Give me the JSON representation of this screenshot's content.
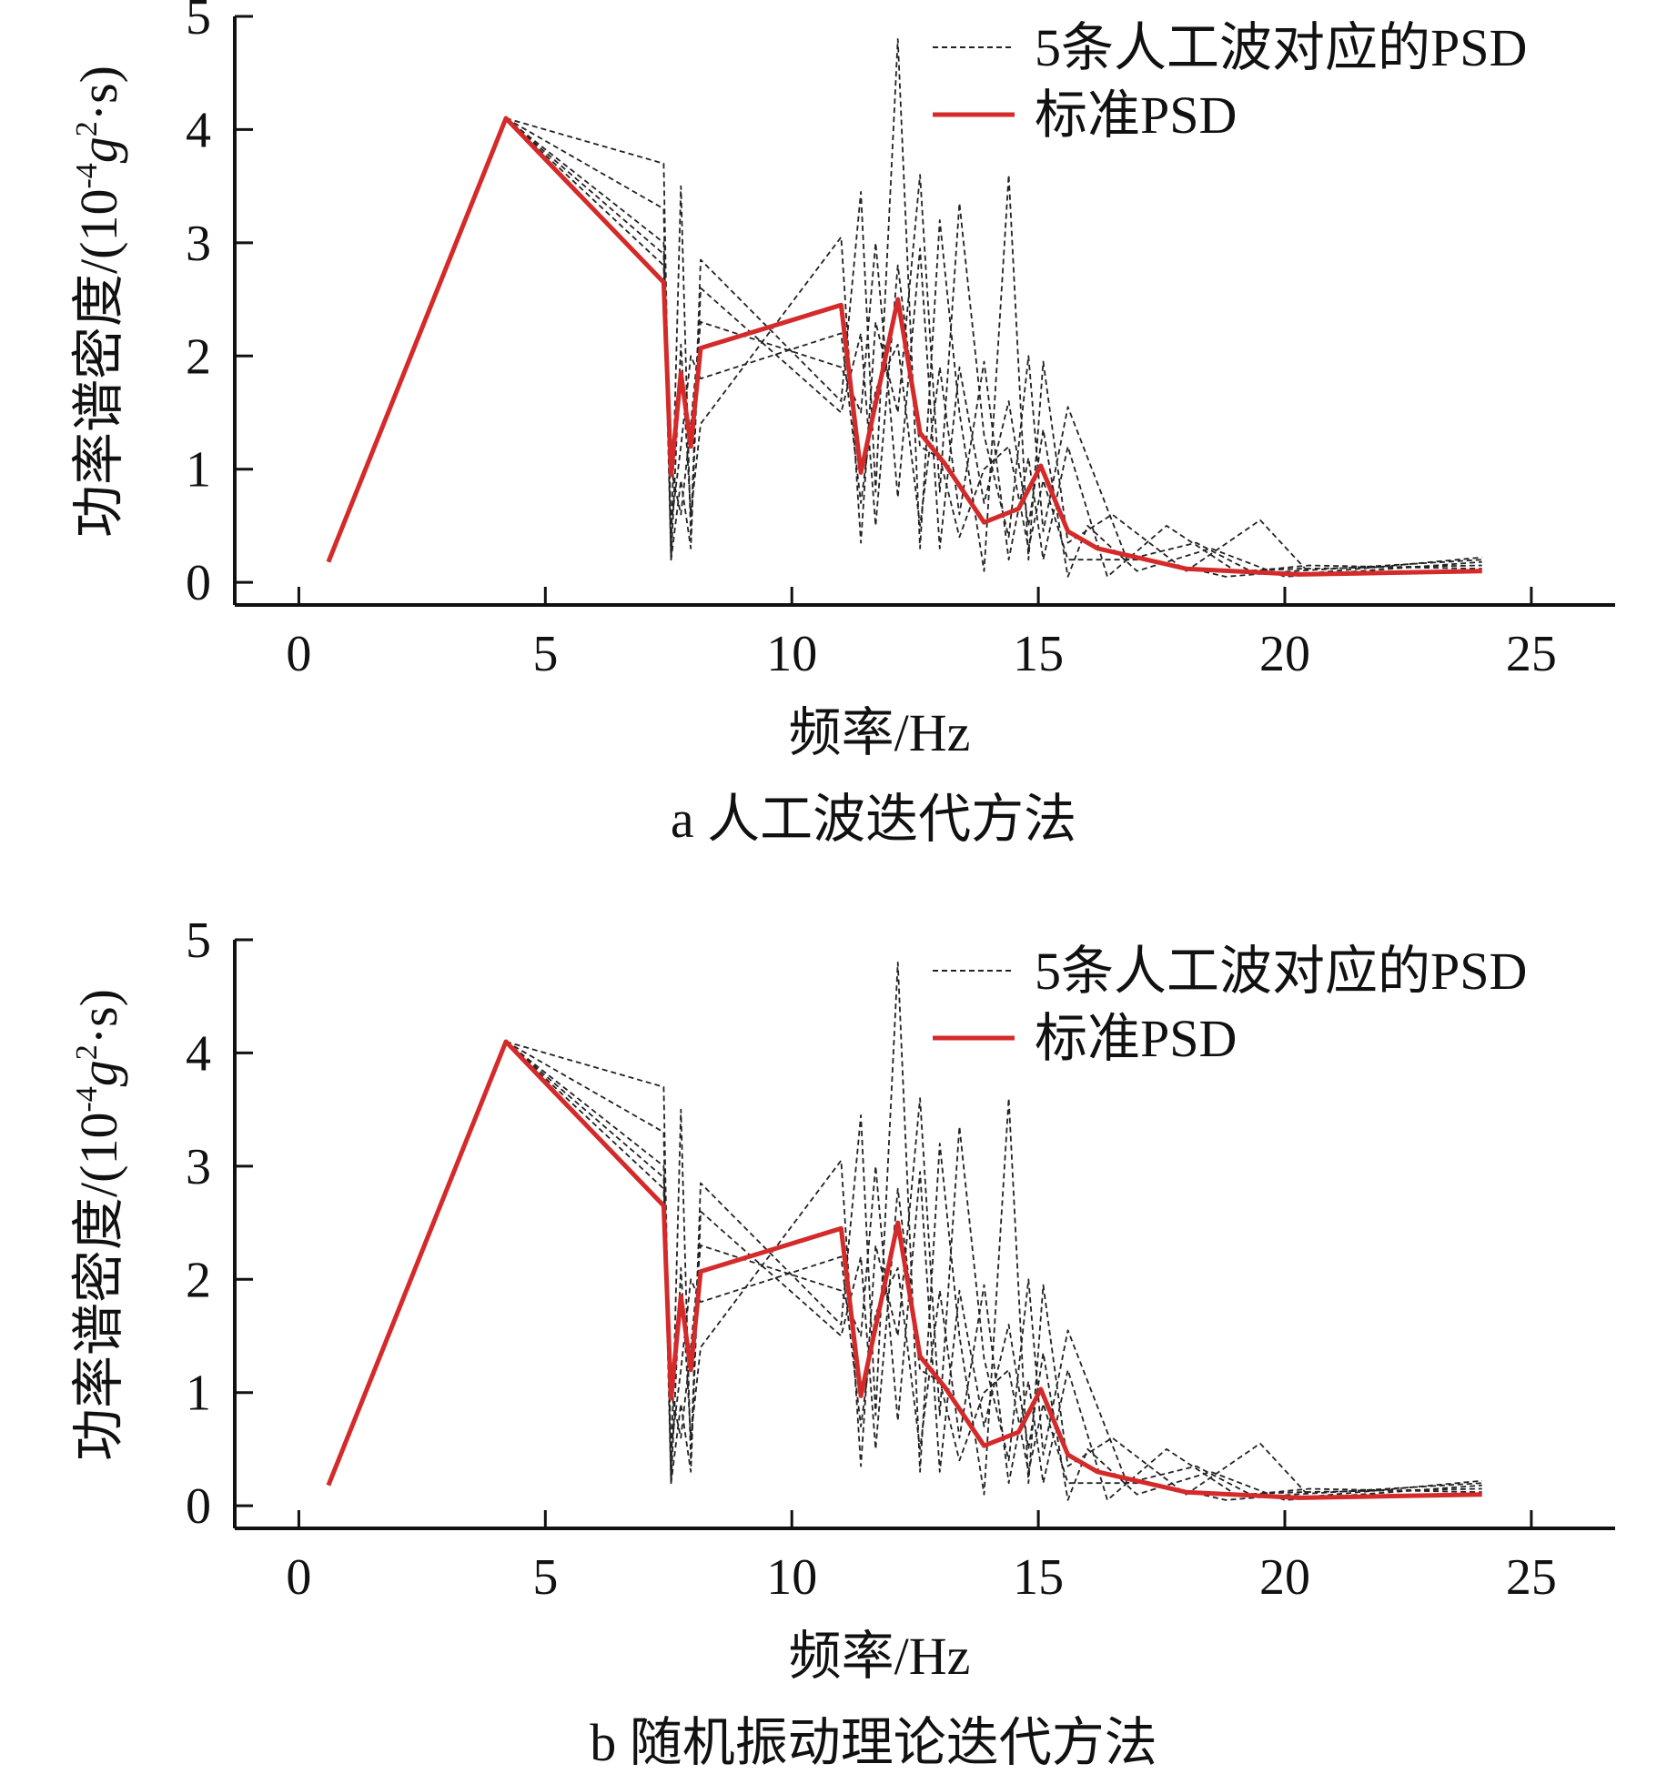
{
  "chart_data": [
    {
      "type": "line",
      "caption": "a 人工波迭代方法",
      "xlabel": "频率/Hz",
      "ylabel_main": "功率谱密度/(10",
      "ylabel_sup1": "-4",
      "ylabel_g": "g",
      "ylabel_sup2": "2",
      "ylabel_end": "·s)",
      "xlim": [
        -1.3,
        26.7
      ],
      "ylim": [
        -0.2,
        5
      ],
      "xticks": [
        "0",
        "5",
        "10",
        "15",
        "20",
        "25"
      ],
      "yticks": [
        "0",
        "1",
        "2",
        "3",
        "4",
        "5"
      ],
      "legend": {
        "position": "top-right",
        "entries": [
          "5条人工波对应的PSD",
          "标准PSD"
        ]
      },
      "series": [
        {
          "name": "标准PSD",
          "style": "solid",
          "color": "#d42a2a",
          "x": [
            0.6,
            4.2,
            7.4,
            7.55,
            7.75,
            7.95,
            8.15,
            11.0,
            11.4,
            12.15,
            12.6,
            13.1,
            13.9,
            14.6,
            15.05,
            15.6,
            16.2,
            18.0,
            20.3,
            21.5,
            24.0
          ],
          "y": [
            0.18,
            4.1,
            2.65,
            0.95,
            1.85,
            1.2,
            2.07,
            2.45,
            0.97,
            2.5,
            1.32,
            1.05,
            0.53,
            0.65,
            1.03,
            0.45,
            0.3,
            0.12,
            0.07,
            0.08,
            0.1
          ]
        },
        {
          "name": "",
          "style": "dashed",
          "color": "#222222",
          "x": [
            4.2,
            7.4,
            7.55,
            7.75,
            7.95,
            8.15,
            11.0,
            11.4,
            11.7,
            12.15,
            12.6,
            13.0,
            13.4,
            13.9,
            14.4,
            14.8,
            15.1,
            15.6,
            16.5,
            18.0,
            19.5,
            20.5,
            24.0
          ],
          "y": [
            4.1,
            3.7,
            0.3,
            3.5,
            0.4,
            2.85,
            1.6,
            3.45,
            0.8,
            4.8,
            0.3,
            3.2,
            1.5,
            0.1,
            3.6,
            0.2,
            1.95,
            0.35,
            0.6,
            0.1,
            0.55,
            0.08,
            0.22
          ]
        },
        {
          "name": "",
          "style": "dashed",
          "color": "#222222",
          "x": [
            4.2,
            7.4,
            7.55,
            7.75,
            7.95,
            8.15,
            11.0,
            11.4,
            11.7,
            12.15,
            12.6,
            13.0,
            13.4,
            13.9,
            14.4,
            14.8,
            15.1,
            15.6,
            16.8,
            18.2,
            19.3,
            20.5,
            24.0
          ],
          "y": [
            4.1,
            3.3,
            0.2,
            2.1,
            0.6,
            1.4,
            3.05,
            0.35,
            2.3,
            1.5,
            3.6,
            0.8,
            3.35,
            1.3,
            0.4,
            2.0,
            0.45,
            1.55,
            0.2,
            0.35,
            0.1,
            0.15,
            0.12
          ]
        },
        {
          "name": "",
          "style": "dashed",
          "color": "#222222",
          "x": [
            4.2,
            7.4,
            7.55,
            7.75,
            7.95,
            8.15,
            11.0,
            11.4,
            11.7,
            12.15,
            12.6,
            13.0,
            13.4,
            13.9,
            14.4,
            14.8,
            15.1,
            15.6,
            16.0,
            17.0,
            18.5,
            20.0,
            24.0
          ],
          "y": [
            4.1,
            3.0,
            1.0,
            0.6,
            1.4,
            2.3,
            1.9,
            1.5,
            3.0,
            0.75,
            2.95,
            0.3,
            1.9,
            0.7,
            1.6,
            0.5,
            1.35,
            0.05,
            0.5,
            0.1,
            0.3,
            0.05,
            0.18
          ]
        },
        {
          "name": "",
          "style": "dashed",
          "color": "#222222",
          "x": [
            4.2,
            7.4,
            7.55,
            7.75,
            7.95,
            8.15,
            11.0,
            11.4,
            11.7,
            12.15,
            12.6,
            13.0,
            13.4,
            13.9,
            14.4,
            14.8,
            15.1,
            15.6,
            16.4,
            17.6,
            19.0,
            20.3,
            24.0
          ],
          "y": [
            4.1,
            2.9,
            0.5,
            1.2,
            2.0,
            1.8,
            2.2,
            0.7,
            1.7,
            2.1,
            0.5,
            1.9,
            0.6,
            1.95,
            0.2,
            1.1,
            0.2,
            1.2,
            0.05,
            0.5,
            0.1,
            0.12,
            0.15
          ]
        },
        {
          "name": "",
          "style": "dashed",
          "color": "#222222",
          "x": [
            4.2,
            7.4,
            7.55,
            7.75,
            7.95,
            8.15,
            11.0,
            11.4,
            11.7,
            12.15,
            12.6,
            13.0,
            13.4,
            13.9,
            14.4,
            14.8,
            15.1,
            15.6,
            16.2,
            17.3,
            18.8,
            20.2,
            24.0
          ],
          "y": [
            4.1,
            2.8,
            0.2,
            0.9,
            0.3,
            2.6,
            1.5,
            2.2,
            0.5,
            2.8,
            1.2,
            1.1,
            0.4,
            1.0,
            1.2,
            0.3,
            0.9,
            0.2,
            0.2,
            0.2,
            0.05,
            0.1,
            0.2
          ]
        }
      ]
    },
    {
      "type": "line",
      "caption": "b 随机振动理论迭代方法",
      "xlabel": "频率/Hz",
      "ylabel_main": "功率谱密度/(10",
      "ylabel_sup1": "-4",
      "ylabel_g": "g",
      "ylabel_sup2": "2",
      "ylabel_end": "·s)",
      "xlim": [
        -1.3,
        26.7
      ],
      "ylim": [
        -0.2,
        5
      ],
      "xticks": [
        "0",
        "5",
        "10",
        "15",
        "20",
        "25"
      ],
      "yticks": [
        "0",
        "1",
        "2",
        "3",
        "4",
        "5"
      ],
      "legend": {
        "position": "top-right",
        "entries": [
          "5条人工波对应的PSD",
          "标准PSD"
        ]
      },
      "series": [
        {
          "name": "标准PSD",
          "style": "solid",
          "color": "#d42a2a",
          "x": [
            0.6,
            4.2,
            7.4,
            7.55,
            7.75,
            7.95,
            8.15,
            11.0,
            11.4,
            12.15,
            12.6,
            13.1,
            13.9,
            14.6,
            15.05,
            15.6,
            16.2,
            18.0,
            20.3,
            21.5,
            24.0
          ],
          "y": [
            0.18,
            4.1,
            2.65,
            0.95,
            1.85,
            1.2,
            2.07,
            2.45,
            0.97,
            2.5,
            1.32,
            1.05,
            0.53,
            0.65,
            1.03,
            0.45,
            0.3,
            0.12,
            0.07,
            0.08,
            0.1
          ]
        },
        {
          "name": "",
          "style": "dashed",
          "color": "#222222",
          "x": [
            4.2,
            7.4,
            7.55,
            7.75,
            7.95,
            8.15,
            11.0,
            11.4,
            11.7,
            12.15,
            12.6,
            13.0,
            13.4,
            13.9,
            14.4,
            14.8,
            15.1,
            15.6,
            16.5,
            18.0,
            19.5,
            20.5,
            24.0
          ],
          "y": [
            4.1,
            3.7,
            0.3,
            3.5,
            0.4,
            2.85,
            1.6,
            3.45,
            0.8,
            4.8,
            0.3,
            3.2,
            1.5,
            0.1,
            3.6,
            0.2,
            1.95,
            0.35,
            0.6,
            0.1,
            0.55,
            0.08,
            0.22
          ]
        },
        {
          "name": "",
          "style": "dashed",
          "color": "#222222",
          "x": [
            4.2,
            7.4,
            7.55,
            7.75,
            7.95,
            8.15,
            11.0,
            11.4,
            11.7,
            12.15,
            12.6,
            13.0,
            13.4,
            13.9,
            14.4,
            14.8,
            15.1,
            15.6,
            16.8,
            18.2,
            19.3,
            20.5,
            24.0
          ],
          "y": [
            4.1,
            3.3,
            0.2,
            2.1,
            0.6,
            1.4,
            3.05,
            0.35,
            2.3,
            1.5,
            3.6,
            0.8,
            3.35,
            1.3,
            0.4,
            2.0,
            0.45,
            1.55,
            0.2,
            0.35,
            0.1,
            0.15,
            0.12
          ]
        },
        {
          "name": "",
          "style": "dashed",
          "color": "#222222",
          "x": [
            4.2,
            7.4,
            7.55,
            7.75,
            7.95,
            8.15,
            11.0,
            11.4,
            11.7,
            12.15,
            12.6,
            13.0,
            13.4,
            13.9,
            14.4,
            14.8,
            15.1,
            15.6,
            16.0,
            17.0,
            18.5,
            20.0,
            24.0
          ],
          "y": [
            4.1,
            3.0,
            1.0,
            0.6,
            1.4,
            2.3,
            1.9,
            1.5,
            3.0,
            0.75,
            2.95,
            0.3,
            1.9,
            0.7,
            1.6,
            0.5,
            1.35,
            0.05,
            0.5,
            0.1,
            0.3,
            0.05,
            0.18
          ]
        },
        {
          "name": "",
          "style": "dashed",
          "color": "#222222",
          "x": [
            4.2,
            7.4,
            7.55,
            7.75,
            7.95,
            8.15,
            11.0,
            11.4,
            11.7,
            12.15,
            12.6,
            13.0,
            13.4,
            13.9,
            14.4,
            14.8,
            15.1,
            15.6,
            16.4,
            17.6,
            19.0,
            20.3,
            24.0
          ],
          "y": [
            4.1,
            2.9,
            0.5,
            1.2,
            2.0,
            1.8,
            2.2,
            0.7,
            1.7,
            2.1,
            0.5,
            1.9,
            0.6,
            1.95,
            0.2,
            1.1,
            0.2,
            1.2,
            0.05,
            0.5,
            0.1,
            0.12,
            0.15
          ]
        },
        {
          "name": "",
          "style": "dashed",
          "color": "#222222",
          "x": [
            4.2,
            7.4,
            7.55,
            7.75,
            7.95,
            8.15,
            11.0,
            11.4,
            11.7,
            12.15,
            12.6,
            13.0,
            13.4,
            13.9,
            14.4,
            14.8,
            15.1,
            15.6,
            16.2,
            17.3,
            18.8,
            20.2,
            24.0
          ],
          "y": [
            4.1,
            2.8,
            0.2,
            0.9,
            0.3,
            2.6,
            1.5,
            2.2,
            0.5,
            2.8,
            1.2,
            1.1,
            0.4,
            1.0,
            1.2,
            0.3,
            0.9,
            0.2,
            0.2,
            0.2,
            0.05,
            0.1,
            0.2
          ]
        }
      ]
    }
  ]
}
